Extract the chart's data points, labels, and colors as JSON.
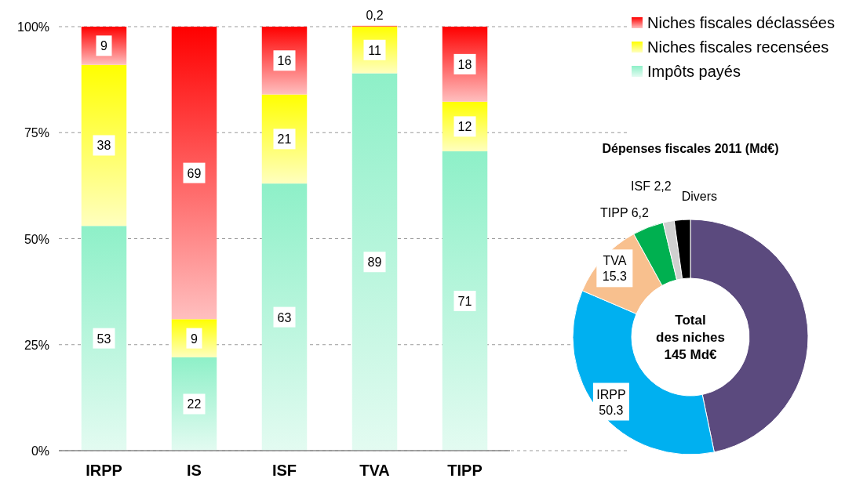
{
  "chart_data": [
    {
      "type": "bar",
      "stacked": true,
      "categories": [
        "IRPP",
        "IS",
        "ISF",
        "TVA",
        "TIPP"
      ],
      "series": [
        {
          "name": "Impôts payés",
          "color": "#8ef0c8",
          "values": [
            53,
            22,
            63,
            89,
            70.6
          ],
          "value_labels": [
            "53",
            "22",
            "63",
            "89",
            "71"
          ]
        },
        {
          "name": "Niches fiscales recensées",
          "color": "#ffff00",
          "values": [
            38,
            9,
            21,
            11,
            11.7
          ],
          "value_labels": [
            "38",
            "9",
            "21",
            "11",
            "12"
          ]
        },
        {
          "name": "Niches fiscales déclassées",
          "color": "#ff0000",
          "values": [
            9,
            69,
            16,
            0.2,
            17.7
          ],
          "value_labels": [
            "9",
            "69",
            "16",
            "0,2",
            "18"
          ]
        }
      ],
      "ylim": [
        0,
        100
      ],
      "yticks": [
        {
          "value": 0,
          "label": "0%"
        },
        {
          "value": 25,
          "label": "25%"
        },
        {
          "value": 50,
          "label": "50%"
        },
        {
          "value": 75,
          "label": "75%"
        },
        {
          "value": 100,
          "label": "100%"
        }
      ],
      "grid": "y",
      "legend": "top right"
    },
    {
      "type": "donut",
      "title": "Dépenses fiscales 2011 (Md€)",
      "categories": [
        null,
        "IRPP",
        "TVA",
        "TIPP",
        "ISF",
        "Divers"
      ],
      "values": [
        67.8,
        50.3,
        15.3,
        6.2,
        2.2,
        3.2
      ],
      "value_labels": [
        null,
        "50.3",
        "15.3",
        "6,2",
        "2,2",
        null
      ],
      "colors": [
        "#5b4a7e",
        "#00b0f0",
        "#f8c08e",
        "#00b050",
        "#d0d0d0",
        "#000000"
      ],
      "annotations": [
        "Total",
        "des niches",
        "145 Md€"
      ]
    }
  ]
}
